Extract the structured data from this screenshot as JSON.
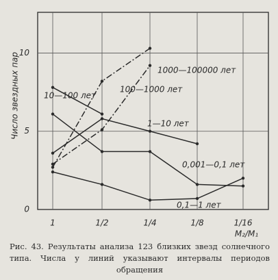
{
  "chart_data": {
    "type": "line",
    "y_label": "Число звездных пар",
    "x_label": "M₂/M₁",
    "caption": "Рис. 43. Результаты анализа 123 близких звезд солнечного типа. Числа у линий указывают интервалы периодов обращения",
    "categories": [
      "1",
      "1/2",
      "1/4",
      "1/8",
      "1/16"
    ],
    "ylim": [
      0,
      12.6
    ],
    "yticks": [
      0,
      5,
      10
    ],
    "grid": true,
    "series": [
      {
        "name": "10—100 лет",
        "color": "#2a2a2a",
        "dash": "solid",
        "values": [
          7.8,
          6.1,
          null,
          null,
          null
        ]
      },
      {
        "name": "1000—100000 лет",
        "color": "#2a2a2a",
        "dash": "dashdot",
        "values": [
          2.9,
          5.1,
          9.2,
          null,
          null
        ]
      },
      {
        "name": "100—1000 лет",
        "color": "#2a2a2a",
        "dash": "dashdot",
        "values": [
          2.7,
          8.2,
          10.3,
          null,
          null
        ]
      },
      {
        "name": "1—10 лет",
        "color": "#2a2a2a",
        "dash": "solid",
        "values": [
          3.6,
          5.8,
          5.0,
          4.2,
          null
        ]
      },
      {
        "name": "0,001—0,1 лет",
        "color": "#2a2a2a",
        "dash": "solid",
        "values": [
          6.1,
          3.7,
          3.7,
          1.6,
          1.5
        ]
      },
      {
        "name": "0,1—1 лет",
        "color": "#2a2a2a",
        "dash": "solid",
        "values": [
          2.4,
          1.6,
          0.6,
          0.7,
          2.0
        ]
      }
    ]
  }
}
